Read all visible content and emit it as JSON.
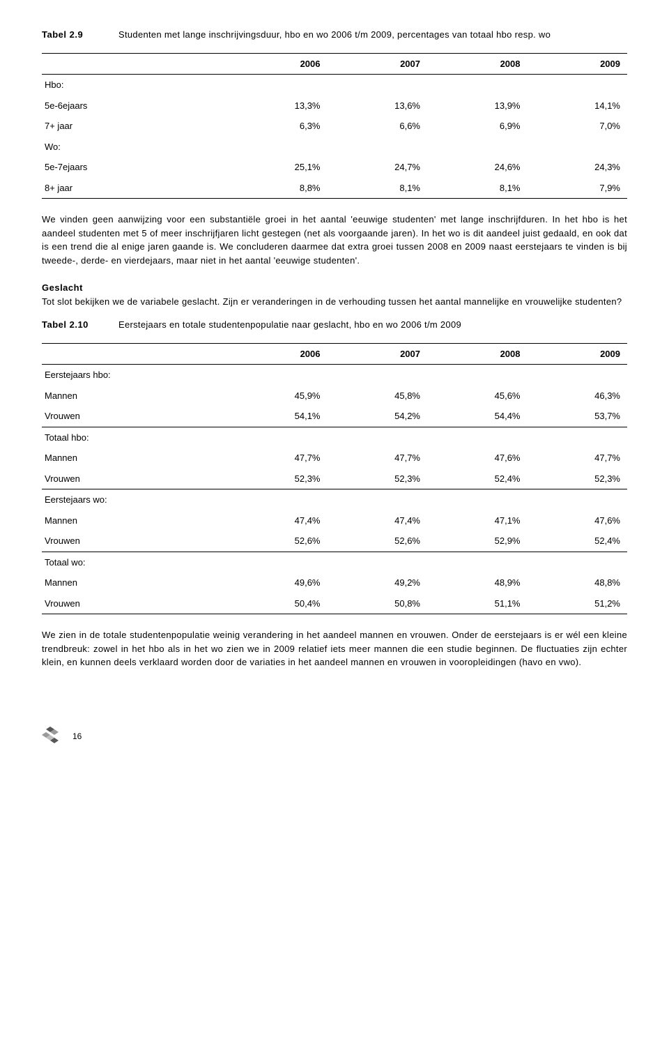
{
  "table1": {
    "title_label": "Tabel 2.9",
    "title_desc": "Studenten met lange inschrijvingsduur, hbo en wo 2006 t/m 2009, percentages van totaal hbo resp. wo",
    "headers": [
      "2006",
      "2007",
      "2008",
      "2009"
    ],
    "rows": [
      {
        "label": "Hbo:",
        "cells": [
          "",
          "",
          "",
          ""
        ]
      },
      {
        "label": "5e-6ejaars",
        "cells": [
          "13,3%",
          "13,6%",
          "13,9%",
          "14,1%"
        ]
      },
      {
        "label": "7+ jaar",
        "cells": [
          "6,3%",
          "6,6%",
          "6,9%",
          "7,0%"
        ]
      },
      {
        "label": "Wo:",
        "cells": [
          "",
          "",
          "",
          ""
        ]
      },
      {
        "label": "5e-7ejaars",
        "cells": [
          "25,1%",
          "24,7%",
          "24,6%",
          "24,3%"
        ]
      },
      {
        "label": "8+ jaar",
        "cells": [
          "8,8%",
          "8,1%",
          "8,1%",
          "7,9%"
        ]
      }
    ]
  },
  "para1": "We vinden geen aanwijzing voor een substantiële groei in het aantal 'eeuwige studenten' met lange inschrijfduren. In het hbo is het aandeel studenten met 5 of meer inschrijfjaren licht gestegen (net als voorgaande jaren). In het wo is dit aandeel juist gedaald, en ook dat is een trend die al enige jaren gaande is. We concluderen daarmee dat extra groei tussen 2008 en 2009 naast eerstejaars te vinden is bij tweede-, derde- en vierdejaars, maar niet in het aantal 'eeuwige studenten'.",
  "geslacht_head": "Geslacht",
  "para2": "Tot slot bekijken we de variabele geslacht. Zijn er veranderingen in de verhouding tussen het aantal mannelijke en vrouwelijke studenten?",
  "table2": {
    "title_label": "Tabel 2.10",
    "title_desc": "Eerstejaars en totale studentenpopulatie naar geslacht, hbo en wo 2006 t/m 2009",
    "headers": [
      "2006",
      "2007",
      "2008",
      "2009"
    ],
    "rows": [
      {
        "label": "Eerstejaars hbo:",
        "cells": [
          "",
          "",
          "",
          ""
        ],
        "underline": false
      },
      {
        "label": "Mannen",
        "cells": [
          "45,9%",
          "45,8%",
          "45,6%",
          "46,3%"
        ],
        "underline": false
      },
      {
        "label": "Vrouwen",
        "cells": [
          "54,1%",
          "54,2%",
          "54,4%",
          "53,7%"
        ],
        "underline": true
      },
      {
        "label": "Totaal hbo:",
        "cells": [
          "",
          "",
          "",
          ""
        ],
        "underline": false
      },
      {
        "label": "Mannen",
        "cells": [
          "47,7%",
          "47,7%",
          "47,6%",
          "47,7%"
        ],
        "underline": false
      },
      {
        "label": "Vrouwen",
        "cells": [
          "52,3%",
          "52,3%",
          "52,4%",
          "52,3%"
        ],
        "underline": true
      },
      {
        "label": "Eerstejaars wo:",
        "cells": [
          "",
          "",
          "",
          ""
        ],
        "underline": false
      },
      {
        "label": "Mannen",
        "cells": [
          "47,4%",
          "47,4%",
          "47,1%",
          "47,6%"
        ],
        "underline": false
      },
      {
        "label": "Vrouwen",
        "cells": [
          "52,6%",
          "52,6%",
          "52,9%",
          "52,4%"
        ],
        "underline": true
      },
      {
        "label": "Totaal wo:",
        "cells": [
          "",
          "",
          "",
          ""
        ],
        "underline": false
      },
      {
        "label": "Mannen",
        "cells": [
          "49,6%",
          "49,2%",
          "48,9%",
          "48,8%"
        ],
        "underline": false
      },
      {
        "label": "Vrouwen",
        "cells": [
          "50,4%",
          "50,8%",
          "51,1%",
          "51,2%"
        ],
        "underline": false
      }
    ]
  },
  "para3": "We zien in de totale studentenpopulatie weinig verandering in het aandeel mannen en vrouwen. Onder de eerstejaars is er wél een kleine trendbreuk: zowel in het hbo als in het wo zien we in 2009 relatief iets meer mannen die een studie beginnen. De fluctuaties zijn echter klein, en kunnen deels verklaard worden door de variaties in het aandeel mannen en vrouwen in vooropleidingen (havo en vwo).",
  "page_number": "16",
  "logo": {
    "fill1": "#575757",
    "fill2": "#9a9a9a",
    "fill3": "#c0c0c0"
  }
}
